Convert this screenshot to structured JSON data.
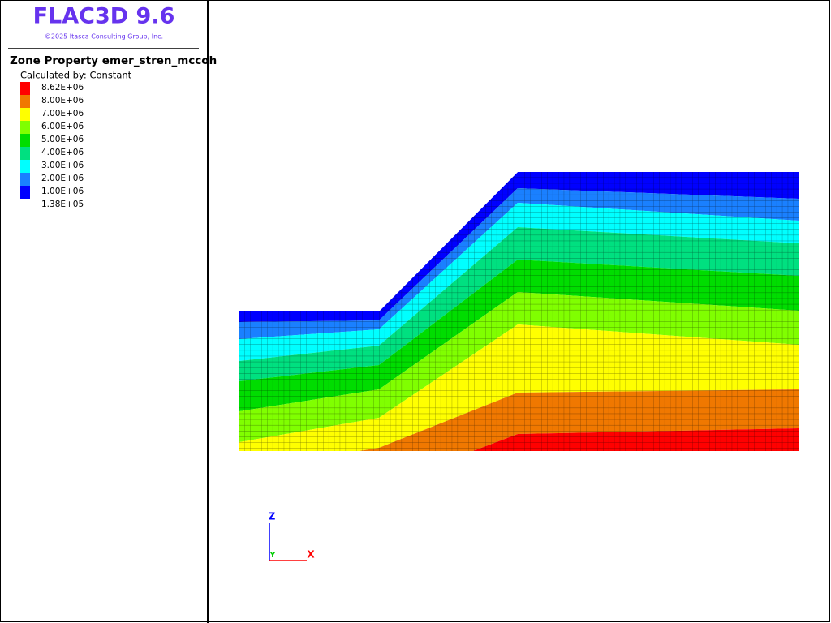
{
  "header": {
    "title": "FLAC3D 9.6",
    "copyright": "©2025 Itasca Consulting Group, Inc."
  },
  "legend": {
    "title": "Zone Property emer_stren_mccoh",
    "subtitle": "Calculated by: Constant",
    "labels": [
      "8.62E+06",
      "8.00E+06",
      "7.00E+06",
      "6.00E+06",
      "5.00E+06",
      "4.00E+06",
      "3.00E+06",
      "2.00E+06",
      "1.00E+06",
      "1.38E+05"
    ],
    "colors": [
      "#ff0000",
      "#f07800",
      "#ffff00",
      "#80ff00",
      "#00dd00",
      "#00e080",
      "#00ffff",
      "#1a80ff",
      "#0000ff"
    ]
  },
  "axes": {
    "z": "Z",
    "y": "Y",
    "x": "X"
  }
}
